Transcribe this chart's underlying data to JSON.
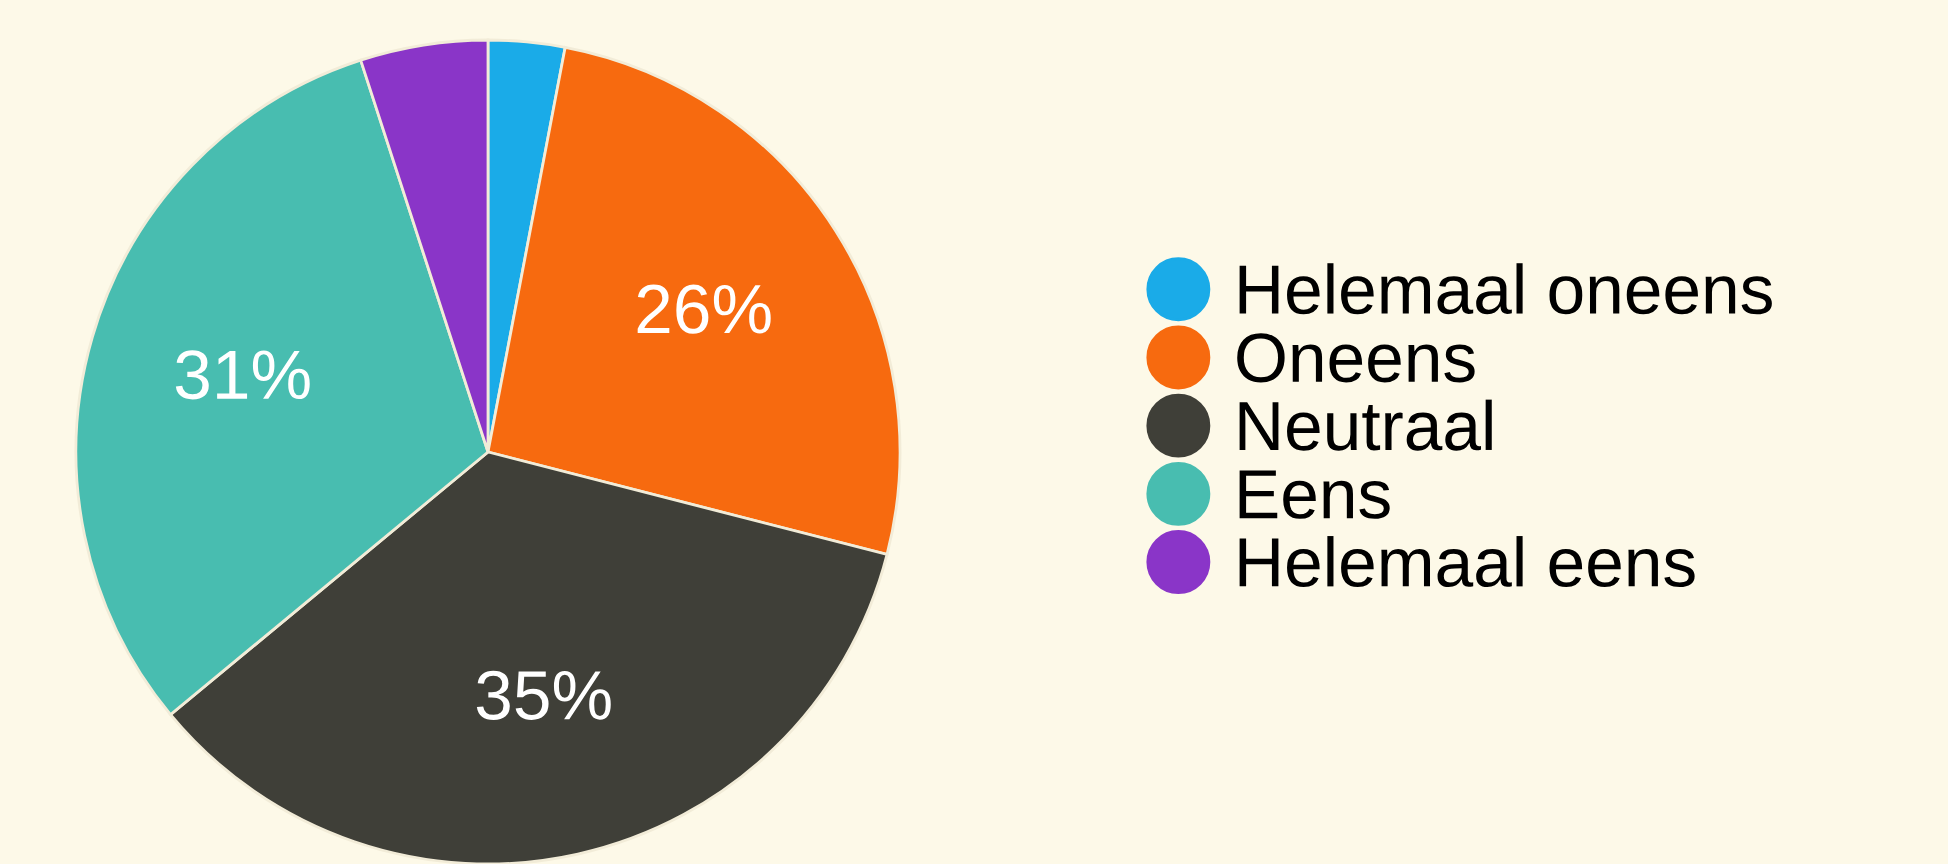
{
  "chart_data": {
    "type": "pie",
    "categories": [
      "Helemaal oneens",
      "Oneens",
      "Neutraal",
      "Eens",
      "Helemaal eens"
    ],
    "values": [
      3,
      26,
      35,
      31,
      5
    ],
    "colors": [
      "#1aabe8",
      "#f76a0f",
      "#3f3f38",
      "#48bdb0",
      "#8a35c8"
    ],
    "value_labels": [
      null,
      "26%",
      "35%",
      "31%",
      null
    ],
    "legend": "right"
  }
}
